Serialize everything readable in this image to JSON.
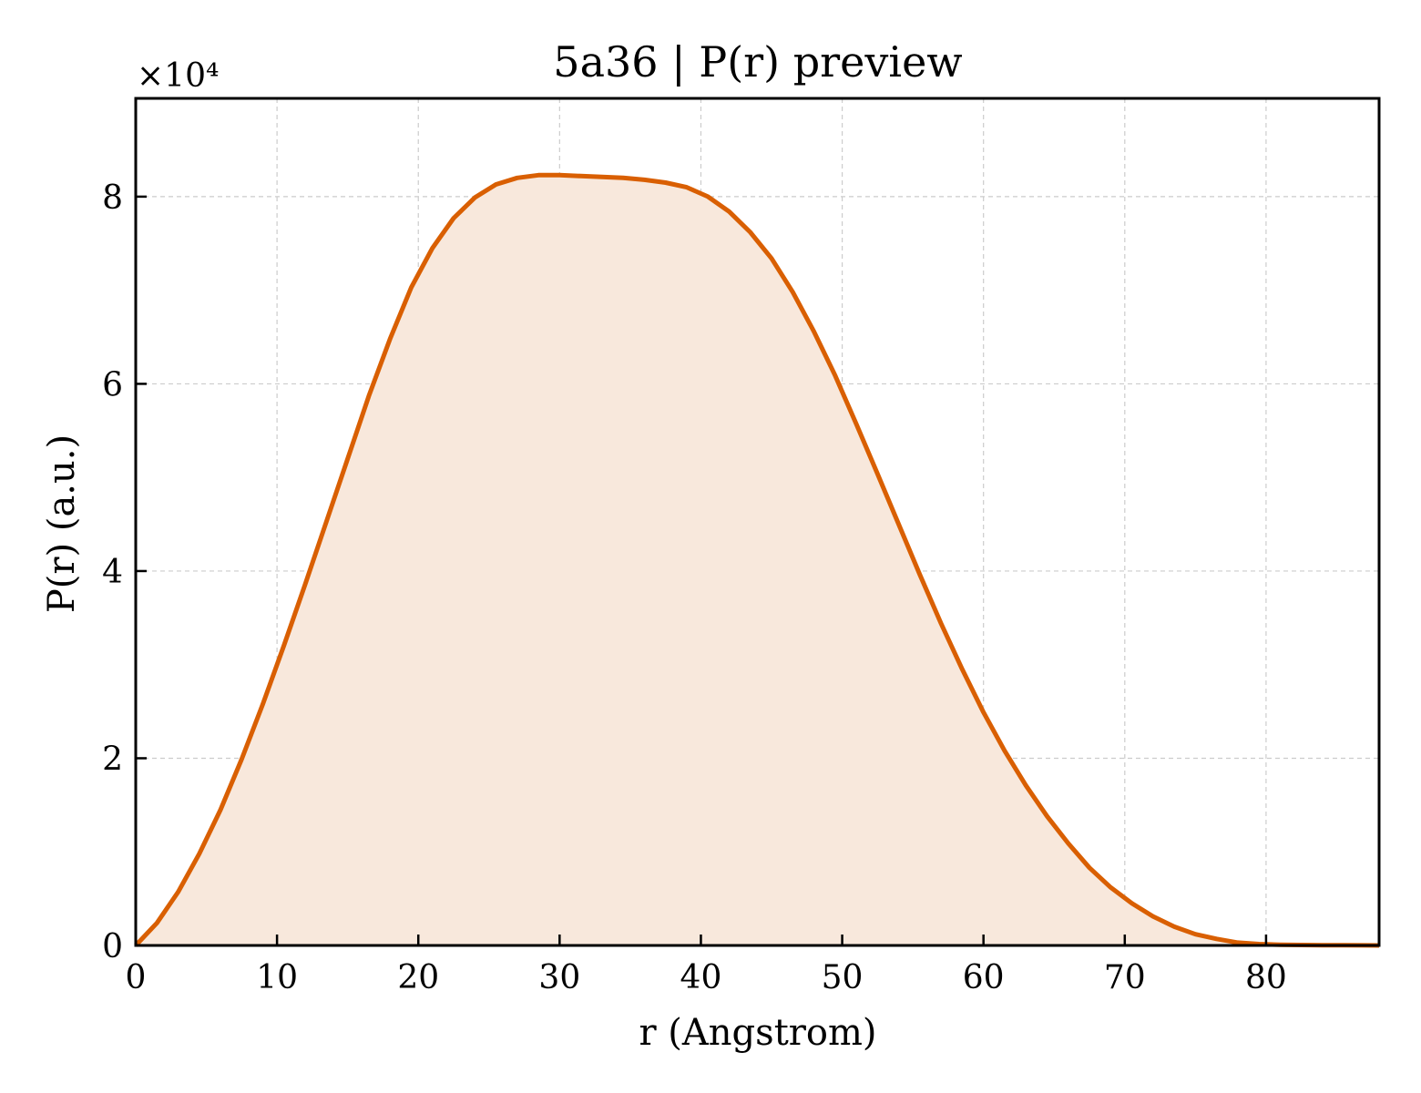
{
  "chart_data": {
    "type": "area",
    "title": "5a36 | P(r) preview",
    "xlabel": "r (Angstrom)",
    "ylabel": "P(r) (a.u.)",
    "y_multiplier_label": "×10⁴",
    "y_multiplier": 10000,
    "xlim": [
      0,
      88
    ],
    "ylim": [
      0,
      90500
    ],
    "x_ticks": [
      0,
      10,
      20,
      30,
      40,
      50,
      60,
      70,
      80
    ],
    "x_tick_labels": [
      "0",
      "10",
      "20",
      "30",
      "40",
      "50",
      "60",
      "70",
      "80"
    ],
    "y_ticks": [
      0,
      20000,
      40000,
      60000,
      80000
    ],
    "y_tick_labels": [
      "0",
      "2",
      "4",
      "6",
      "8"
    ],
    "grid": true,
    "colors": {
      "line": "#d95f02",
      "fill": "#f8e8dc"
    },
    "series": [
      {
        "x": [
          0,
          1.5,
          3,
          4.5,
          6,
          7.5,
          9,
          10.5,
          12,
          13.5,
          15,
          16.5,
          18,
          19.5,
          21,
          22.5,
          24,
          25.5,
          27,
          28.5,
          30,
          31.5,
          33,
          34.5,
          36,
          37.5,
          39,
          40.5,
          42,
          43.5,
          45,
          46.5,
          48,
          49.5,
          51,
          52.5,
          54,
          55.5,
          57,
          58.5,
          60,
          61.5,
          63,
          64.5,
          66,
          67.5,
          69,
          70.5,
          72,
          73.5,
          75,
          76.5,
          78,
          79.5,
          81,
          82.5,
          84,
          85.5,
          87,
          88
        ],
        "y": [
          0,
          2400,
          5700,
          9800,
          14500,
          19900,
          25800,
          32100,
          38600,
          45300,
          52000,
          58700,
          64800,
          70300,
          74500,
          77700,
          79900,
          81300,
          82000,
          82300,
          82300,
          82200,
          82100,
          82000,
          81800,
          81500,
          81000,
          80000,
          78400,
          76200,
          73400,
          69800,
          65600,
          60900,
          55700,
          50400,
          45000,
          39600,
          34400,
          29500,
          24900,
          20800,
          17100,
          13800,
          10900,
          8300,
          6200,
          4500,
          3100,
          2000,
          1200,
          700,
          300,
          150,
          80,
          50,
          30,
          20,
          10,
          0
        ]
      }
    ]
  }
}
